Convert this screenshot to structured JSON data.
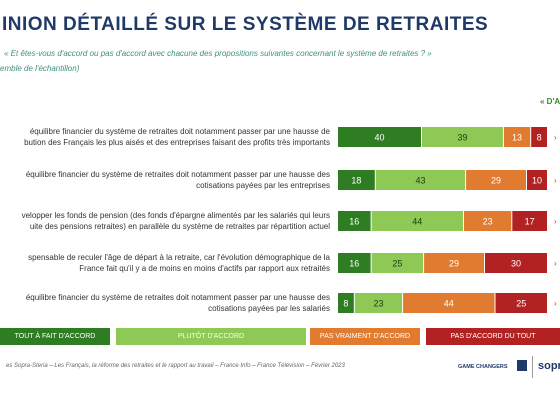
{
  "header": {
    "title": "INION DÉTAILLÉ SUR LE SYSTÈME DE RETRAITES",
    "subtitle": "« Et êtes-vous d'accord ou pas d'accord avec chacune des propositions suivantes concernant le système de retraites ? »",
    "base": "emble de l'échantillon)",
    "topright": "« D'A"
  },
  "chart_data": {
    "type": "bar",
    "stacked": true,
    "orientation": "horizontal",
    "categories": [
      [
        "équilibre financier du système de retraites doit notamment passer par une hausse de",
        "bution des Français les plus aisés et des entreprises faisant des profits très importants"
      ],
      [
        "équilibre financier du système de retraites doit notamment passer par une hausse des",
        "cotisations payées par les entreprises"
      ],
      [
        "velopper les fonds de pension (des fonds d'épargne alimentés par les salariés qui leurs",
        "uite des pensions retraites) en parallèle du système de retraites par répartition actuel"
      ],
      [
        "spensable de reculer l'âge de départ à la retraite, car l'évolution démographique de la",
        "France fait qu'il y a de moins en moins d'actifs par rapport aux retraités"
      ],
      [
        "équilibre financier du système de retraites doit notamment passer par une hausse des",
        "cotisations payées par les salariés"
      ]
    ],
    "series": [
      {
        "name": "TOUT À FAIT D'ACCORD",
        "color": "#2f7d23",
        "values": [
          40,
          18,
          16,
          16,
          8
        ]
      },
      {
        "name": "PLUTÔT D'ACCORD",
        "color": "#8fc955",
        "values": [
          39,
          43,
          44,
          25,
          23
        ]
      },
      {
        "name": "PAS VRAIMENT D'ACCORD",
        "color": "#e07b30",
        "values": [
          13,
          29,
          23,
          29,
          44
        ]
      },
      {
        "name": "PAS D'ACCORD DU TOUT",
        "color": "#b22222",
        "values": [
          8,
          10,
          17,
          30,
          25
        ]
      }
    ]
  },
  "legend_labels": [
    "TOUT À FAIT D'ACCORD",
    "PLUTÔT D'ACCORD",
    "PAS VRAIMENT D'ACCORD",
    "PAS D'ACCORD DU TOUT"
  ],
  "footer": {
    "source": "es Sopra-Steria – Les Français, la réforme des retraites et le rapport au travail – France Info – France Télévision – Février 2023",
    "gc": "GAME CHANGERS",
    "logo": "sopra"
  }
}
